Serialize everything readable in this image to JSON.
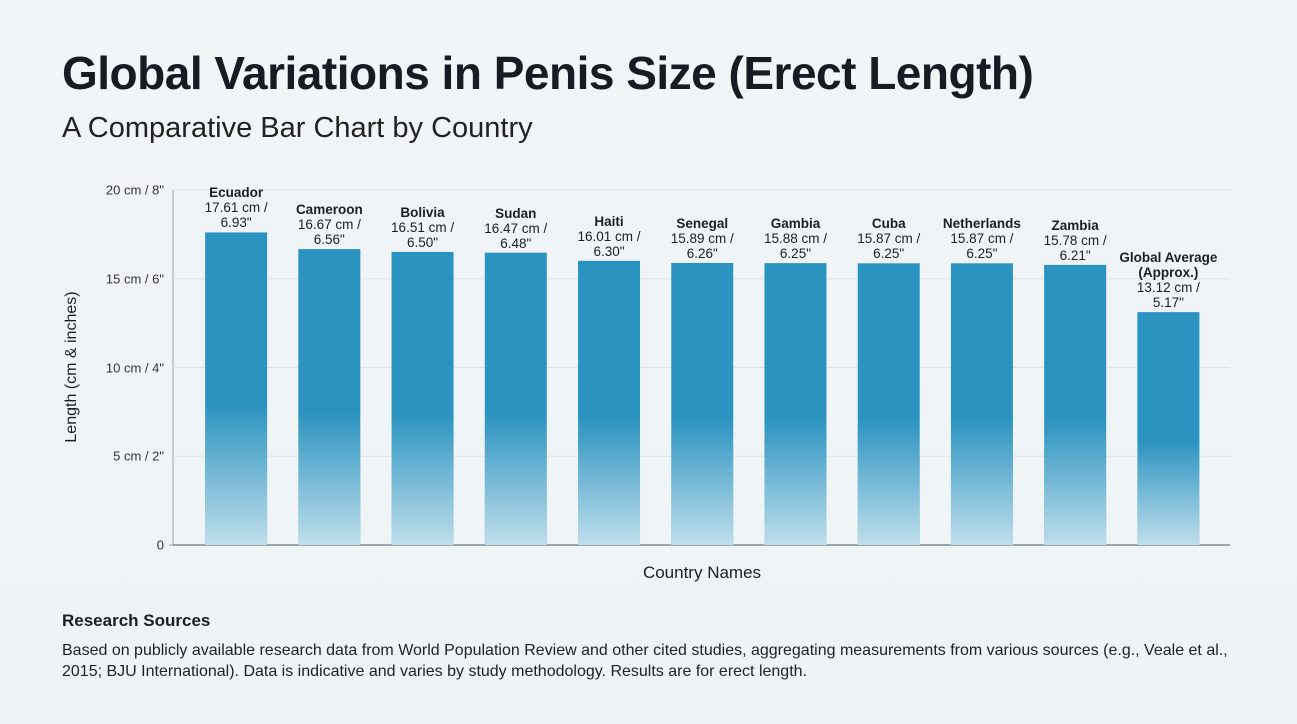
{
  "chart_data": {
    "type": "bar",
    "title": "Global Variations in Penis Size (Erect Length)",
    "subtitle": "A Comparative Bar Chart by Country",
    "y_label": "Length (cm & inches)",
    "x_label": "Country Names",
    "categories": [
      "Ecuador",
      "Cameroon",
      "Bolivia",
      "Sudan",
      "Haiti",
      "Senegal",
      "Gambia",
      "Cuba",
      "Netherlands",
      "Zambia",
      "Global Average (Approx.)"
    ],
    "values": [
      17.61,
      16.67,
      16.51,
      16.47,
      16.01,
      15.89,
      15.88,
      15.87,
      15.87,
      15.78,
      13.12
    ],
    "value_labels": [
      "17.61 cm / 6.93\"",
      "16.67 cm / 6.56\"",
      "16.51 cm / 6.50\"",
      "16.47 cm / 6.48\"",
      "16.01 cm / 6.30\"",
      "15.89 cm / 6.26\"",
      "15.88 cm / 6.25\"",
      "15.87 cm / 6.25\"",
      "15.87 cm / 6.25\"",
      "15.78 cm / 6.21\"",
      "13.12 cm / 5.17\""
    ],
    "color": "#2b93c0",
    "ylim": [
      0,
      20
    ],
    "yticks": [
      0,
      {
        "value": 5,
        "label": "5 cm / 2\""
      },
      {
        "value": 10,
        "label": "10 cm / 4\""
      },
      {
        "value": 15,
        "label": "15 cm / 6\""
      },
      {
        "value": 20,
        "label": "20 cm / 8\""
      }
    ],
    "grid": true,
    "notes_title": "Research Sources",
    "notes": "Based on publicly available research data from World Population Review and other cited studies, aggregating measurements from various sources (e.g., Veale et al., 2015; BJU International). Data is indicative and varies by study methodology. Results are for erect length."
  }
}
